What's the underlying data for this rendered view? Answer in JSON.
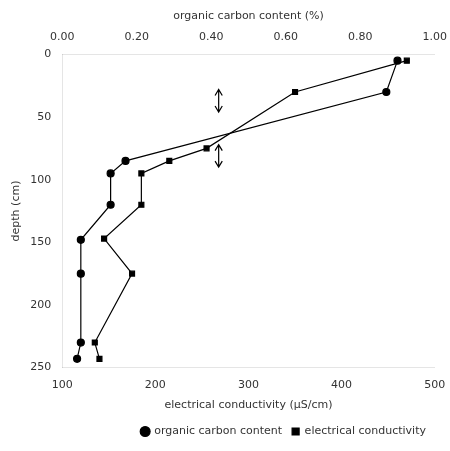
{
  "chart_data": {
    "type": "line",
    "xlabel": "electrical conductivity (μS/cm)",
    "x2label": "organic carbon content (%)",
    "ylabel": "depth (cm)",
    "xlim": [
      100,
      500
    ],
    "xticks": [
      100,
      200,
      300,
      400,
      500
    ],
    "x2lim": [
      0.0,
      1.0
    ],
    "x2ticks": [
      {
        "value": 0.0,
        "label": "0.00"
      },
      {
        "value": 0.2,
        "label": "0.20"
      },
      {
        "value": 0.4,
        "label": "0.40"
      },
      {
        "value": 0.6,
        "label": "0.60"
      },
      {
        "value": 0.8,
        "label": "0.80"
      },
      {
        "value": 1.0,
        "label": "1.00"
      }
    ],
    "ylim": [
      250,
      0
    ],
    "yticks": [
      0,
      50,
      100,
      150,
      200,
      250
    ],
    "grid": false,
    "legend": "lower right",
    "series": [
      {
        "name": "organic carbon content",
        "axis": "x2",
        "color": "#000000",
        "marker": "circle",
        "x": [
          0.9,
          0.87,
          0.17,
          0.13,
          0.13,
          0.05,
          0.05,
          0.05,
          0.04
        ],
        "y": [
          5,
          30,
          85,
          95,
          120,
          148,
          175,
          230,
          243
        ]
      },
      {
        "name": "electrical conductivity",
        "axis": "x",
        "color": "#000000",
        "marker": "square",
        "x": [
          470,
          350,
          255,
          215,
          185,
          185,
          145,
          175,
          135,
          140
        ],
        "y": [
          5,
          30,
          75,
          85,
          95,
          120,
          147,
          175,
          230,
          243
        ]
      }
    ],
    "annotations": [
      {
        "type": "arrow",
        "axis": "x2",
        "x": 0.42,
        "y_from": 28,
        "y_to": 46
      },
      {
        "type": "arrow",
        "axis": "x2",
        "x": 0.42,
        "y_from": 72,
        "y_to": 90
      }
    ]
  }
}
